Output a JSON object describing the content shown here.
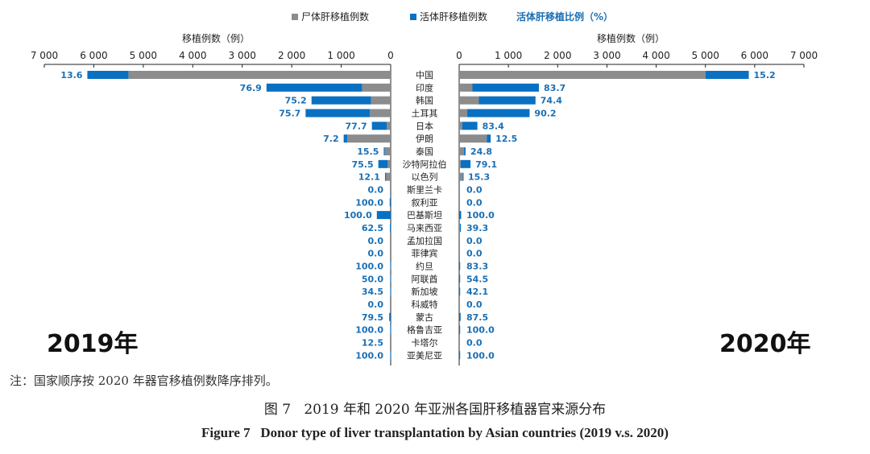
{
  "chart_data": {
    "type": "bar",
    "orientation": "horizontal-butterfly",
    "legend": {
      "deceased": "尸体肝移植例数",
      "living": "活体肝移植例数",
      "ratio": "活体肝移植比例（%）",
      "placement": "top-center"
    },
    "colors": {
      "deceased": "#8c8c8c",
      "living": "#0a70c2",
      "ratio_text": "#1a6fb5",
      "axis": "#222222"
    },
    "axis_label_left": "移植例数（例）",
    "axis_label_right": "移植例数（例）",
    "xlim": [
      0,
      7000
    ],
    "ticks": [
      0,
      1000,
      2000,
      3000,
      4000,
      5000,
      6000,
      7000
    ],
    "tick_labels": [
      "0",
      "1 000",
      "2 000",
      "3 000",
      "4 000",
      "5 000",
      "6 000",
      "7 000"
    ],
    "categories": [
      "中国",
      "印度",
      "韩国",
      "土耳其",
      "日本",
      "伊朗",
      "泰国",
      "沙特阿拉伯",
      "以色列",
      "斯里兰卡",
      "叙利亚",
      "巴基斯坦",
      "马来西亚",
      "孟加拉国",
      "菲律宾",
      "约旦",
      "阿联酋",
      "新加坡",
      "科威特",
      "蒙古",
      "格鲁吉亚",
      "卡塔尔",
      "亚美尼亚"
    ],
    "panels": [
      {
        "year_label": "2019年",
        "side": "left",
        "series": [
          {
            "name": "尸体肝移植例数",
            "values": [
              5300,
              580,
              400,
              420,
              80,
              880,
              120,
              60,
              100,
              0,
              0,
              0,
              0,
              0,
              0,
              0,
              0,
              0,
              0,
              0,
              0,
              0,
              0
            ]
          },
          {
            "name": "活体肝移植例数",
            "values": [
              830,
              1930,
              1200,
              1300,
              300,
              70,
              20,
              190,
              15,
              0,
              20,
              280,
              15,
              0,
              0,
              10,
              10,
              10,
              0,
              30,
              10,
              0,
              10
            ]
          }
        ],
        "ratio_labels": [
          "13.6",
          "76.9",
          "75.2",
          "75.7",
          "77.7",
          "7.2",
          "15.5",
          "75.5",
          "12.1",
          "0.0",
          "100.0",
          "100.0",
          "62.5",
          "0.0",
          "0.0",
          "100.0",
          "50.0",
          "34.5",
          "0.0",
          "79.5",
          "100.0",
          "12.5",
          "100.0"
        ]
      },
      {
        "year_label": "2020年",
        "side": "right",
        "series": [
          {
            "name": "尸体肝移植例数",
            "values": [
              5000,
              270,
              400,
              160,
              60,
              560,
              100,
              30,
              70,
              0,
              0,
              0,
              15,
              0,
              0,
              0,
              0,
              0,
              0,
              0,
              0,
              0,
              0
            ]
          },
          {
            "name": "活体肝移植例数",
            "values": [
              880,
              1350,
              1150,
              1270,
              310,
              80,
              30,
              200,
              12,
              0,
              0,
              40,
              10,
              0,
              0,
              10,
              10,
              10,
              0,
              30,
              10,
              0,
              10
            ]
          }
        ],
        "ratio_labels": [
          "15.2",
          "83.7",
          "74.4",
          "90.2",
          "83.4",
          "12.5",
          "24.8",
          "79.1",
          "15.3",
          "0.0",
          "0.0",
          "100.0",
          "39.3",
          "0.0",
          "0.0",
          "83.3",
          "54.5",
          "42.1",
          "0.0",
          "87.5",
          "100.0",
          "0.0",
          "100.0"
        ]
      }
    ]
  },
  "note": "注：国家顺序按 2020 年器官移植例数降序排列。",
  "caption_cn": {
    "fignum": "图 7",
    "title": "2019 年和 2020 年亚洲各国肝移植器官来源分布"
  },
  "caption_en": {
    "fignum": "Figure 7",
    "title": "Donor type of liver transplantation by Asian countries (2019 v.s. 2020)"
  }
}
